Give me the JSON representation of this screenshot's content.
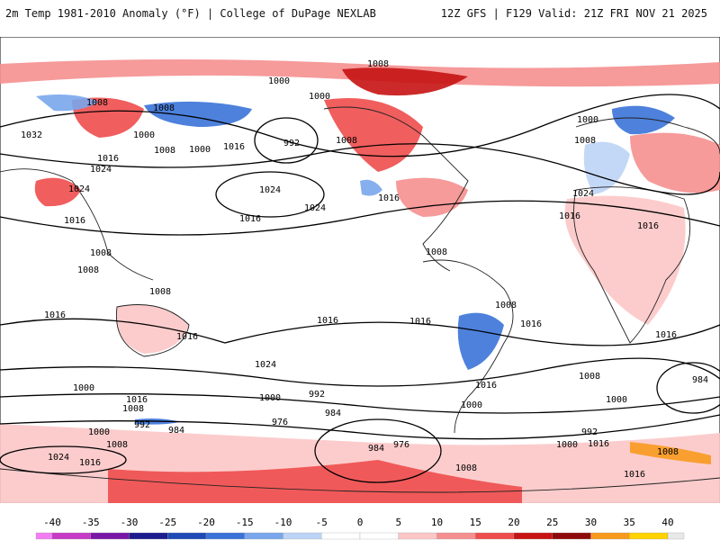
{
  "header": {
    "title_left": "2m Temp 1981-2010 Anomaly (°F) | College of DuPage NEXLAB",
    "title_right": "12Z GFS | F129 Valid: 21Z FRI NOV 21 2025"
  },
  "colors": {
    "land_outline": "#222222",
    "isobar": "#000000",
    "map_background": "#ffffff"
  },
  "isobar_labels": [
    "1008",
    "1000",
    "1000",
    "1032",
    "1008",
    "1008",
    "1000",
    "992",
    "1000",
    "1016",
    "1008",
    "1008",
    "1016",
    "1024",
    "1024",
    "1024",
    "1024",
    "1016",
    "1016",
    "1008",
    "1008",
    "1008",
    "1016",
    "1008",
    "1016",
    "1016",
    "1016",
    "1008",
    "1016",
    "1016",
    "1024",
    "1024",
    "1016",
    "1016",
    "1000",
    "1016",
    "1008",
    "1000",
    "992",
    "984",
    "976",
    "984",
    "984",
    "976",
    "992",
    "1000",
    "1008",
    "1016",
    "1000",
    "1000",
    "1008",
    "1016",
    "1024",
    "1008",
    "984",
    "1000",
    "1008",
    "992",
    "1000",
    "1016",
    "1008",
    "1016",
    "1016"
  ],
  "legend": {
    "ticks": [
      "-40",
      "-35",
      "-30",
      "-25",
      "-20",
      "-15",
      "-10",
      "-5",
      "0",
      "5",
      "10",
      "15",
      "20",
      "25",
      "30",
      "35",
      "40"
    ],
    "colors": [
      "#f37cf3",
      "#c63bc6",
      "#7a17a6",
      "#1c1c8e",
      "#1f49b5",
      "#3a73d8",
      "#79a6ec",
      "#bcd4f6",
      "#ffffff",
      "#ffffff",
      "#fcc6c6",
      "#f58f8f",
      "#ee4d4d",
      "#c71313",
      "#8e0a0a",
      "#f89a1e",
      "#ffd200",
      "#e8e8e8"
    ]
  }
}
